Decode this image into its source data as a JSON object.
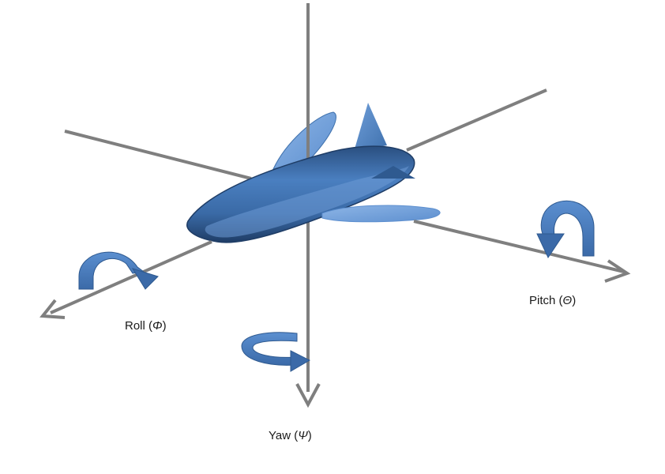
{
  "labels": {
    "roll": {
      "name": "Roll",
      "symbol": "Φ"
    },
    "pitch": {
      "name": "Pitch",
      "symbol": "Θ"
    },
    "yaw": {
      "name": "Yaw",
      "symbol": "Ψ"
    }
  },
  "colors": {
    "axis": "#7f7f7f",
    "body_dark": "#1f3d66",
    "body_mid": "#3f71ad",
    "body_light": "#7ea8dc",
    "arrow": "#4a7ebf",
    "arrow_dark": "#2f5a90"
  }
}
